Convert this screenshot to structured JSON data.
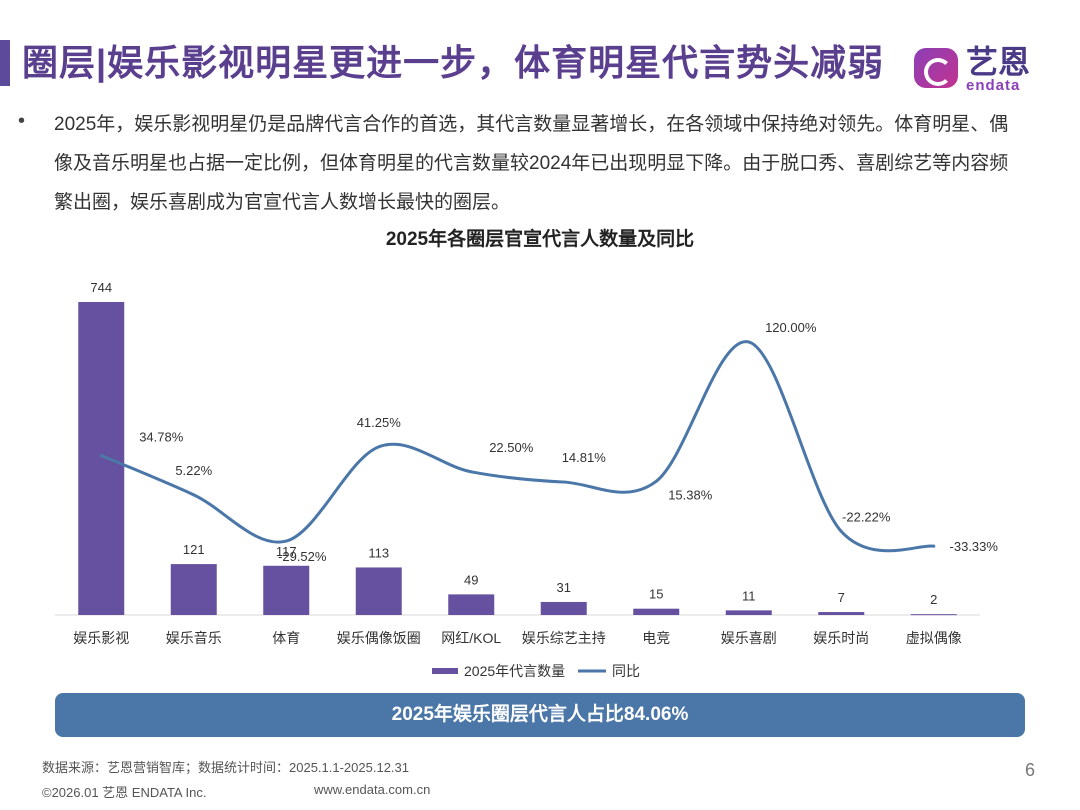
{
  "header": {
    "title": "圈层|娱乐影视明星更进一步，体育明星代言势头减弱",
    "logo_cn": "艺恩",
    "logo_en": "endata"
  },
  "bullet": {
    "marker": "•",
    "text": "2025年，娱乐影视明星仍是品牌代言合作的首选，其代言数量显著增长，在各领域中保持绝对领先。体育明星、偶像及音乐明星也占据一定比例，但体育明星的代言数量较2024年已出现明显下降。由于脱口秀、喜剧综艺等内容频繁出圈，娱乐喜剧成为官宣代言人数增长最快的圈层。"
  },
  "chart_data": {
    "type": "bar+line",
    "title": "2025年各圈层官宣代言人数量及同比",
    "categories": [
      "娱乐影视",
      "娱乐音乐",
      "体育",
      "娱乐偶像饭圈",
      "网红/KOL",
      "娱乐综艺主持",
      "电竞",
      "娱乐喜剧",
      "娱乐时尚",
      "虚拟偶像"
    ],
    "series": [
      {
        "name": "2025年代言数量",
        "kind": "bar",
        "axis": "left",
        "values": [
          744,
          121,
          117,
          113,
          49,
          31,
          15,
          11,
          7,
          2
        ],
        "labels": [
          "744",
          "121",
          "117",
          "113",
          "49",
          "31",
          "15",
          "11",
          "7",
          "2"
        ],
        "color": "#6650a0"
      },
      {
        "name": "同比",
        "kind": "line",
        "axis": "right",
        "values": [
          34.78,
          5.22,
          -29.52,
          41.25,
          22.5,
          14.81,
          15.38,
          120.0,
          -22.22,
          -33.33
        ],
        "labels": [
          "34.78%",
          "5.22%",
          "-29.52%",
          "41.25%",
          "22.50%",
          "14.81%",
          "15.38%",
          "120.00%",
          "-22.22%",
          "-33.33%"
        ],
        "color": "#4a76a8"
      }
    ],
    "ylim_left": [
      0,
      744
    ],
    "ylim_right": [
      -85,
      150
    ],
    "legend_position": "bottom"
  },
  "banner": {
    "text": "2025年娱乐圈层代言人占比84.06%"
  },
  "footer": {
    "source": "数据来源：艺恩营销智库；数据统计时间：2025.1.1-2025.12.31",
    "copyright": "©2026.01 艺恩 ENDATA Inc.",
    "website": "www.endata.com.cn",
    "page_number": "6"
  }
}
